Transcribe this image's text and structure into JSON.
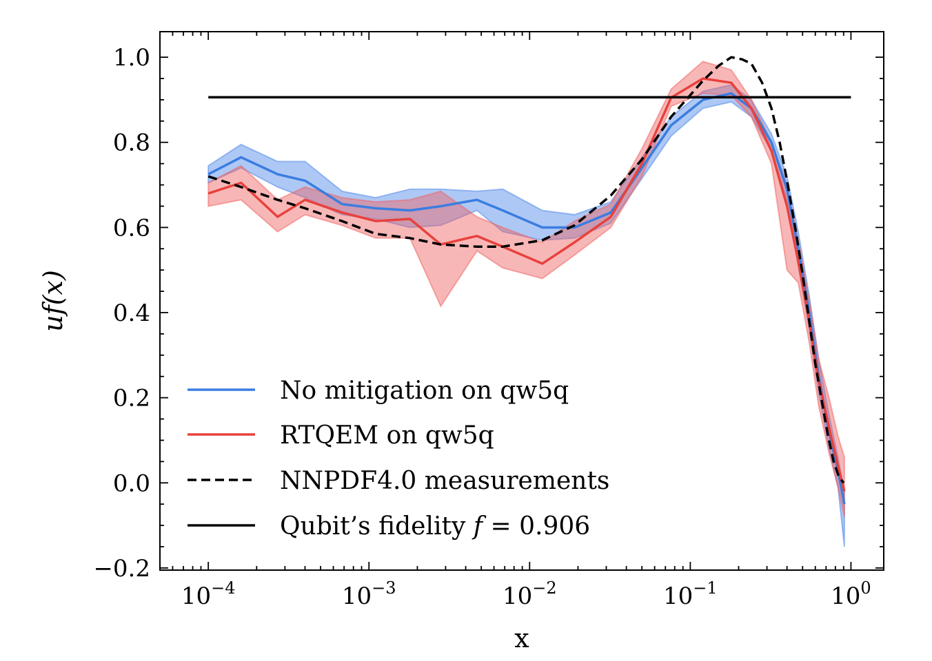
{
  "chart_data": {
    "type": "line",
    "xscale": "log",
    "xlim": [
      5e-05,
      1.6
    ],
    "ylim": [
      -0.205,
      1.06
    ],
    "xlabel": "x",
    "ylabel": "uf(x)",
    "x_ticks": [
      {
        "value": 0.0001,
        "base": "10",
        "exp": "−4"
      },
      {
        "value": 0.001,
        "base": "10",
        "exp": "−3"
      },
      {
        "value": 0.01,
        "base": "10",
        "exp": "−2"
      },
      {
        "value": 0.1,
        "base": "10",
        "exp": "−1"
      },
      {
        "value": 1,
        "base": "10",
        "exp": "0"
      }
    ],
    "y_ticks": [
      {
        "value": -0.2,
        "label": "−0.2"
      },
      {
        "value": 0.0,
        "label": "0.0"
      },
      {
        "value": 0.2,
        "label": "0.2"
      },
      {
        "value": 0.4,
        "label": "0.4"
      },
      {
        "value": 0.6,
        "label": "0.6"
      },
      {
        "value": 0.8,
        "label": "0.8"
      },
      {
        "value": 1.0,
        "label": "1.0"
      }
    ],
    "legend_position": "lower-left",
    "series": [
      {
        "name": "No mitigation on qw5q",
        "color": "#3a7de0",
        "band_color": "#4b86e8",
        "x": [
          0.0001,
          0.00016,
          0.00027,
          0.0004,
          0.00068,
          0.0011,
          0.0018,
          0.0028,
          0.0047,
          0.0068,
          0.012,
          0.019,
          0.032,
          0.05,
          0.076,
          0.12,
          0.18,
          0.24,
          0.32,
          0.4,
          0.47,
          0.55,
          0.63,
          0.73,
          0.83,
          0.91
        ],
        "y": [
          0.725,
          0.765,
          0.725,
          0.71,
          0.655,
          0.645,
          0.64,
          0.65,
          0.665,
          0.64,
          0.6,
          0.6,
          0.635,
          0.74,
          0.84,
          0.9,
          0.915,
          0.88,
          0.8,
          0.69,
          0.55,
          0.4,
          0.25,
          0.12,
          0.03,
          -0.05
        ],
        "y_upper": [
          0.745,
          0.795,
          0.755,
          0.755,
          0.685,
          0.67,
          0.69,
          0.69,
          0.685,
          0.69,
          0.64,
          0.63,
          0.66,
          0.765,
          0.86,
          0.92,
          0.935,
          0.9,
          0.82,
          0.72,
          0.59,
          0.44,
          0.29,
          0.16,
          0.06,
          -0.02
        ],
        "y_lower": [
          0.705,
          0.74,
          0.695,
          0.67,
          0.63,
          0.62,
          0.6,
          0.605,
          0.64,
          0.59,
          0.57,
          0.575,
          0.61,
          0.715,
          0.815,
          0.88,
          0.895,
          0.86,
          0.78,
          0.66,
          0.51,
          0.36,
          0.21,
          0.08,
          -0.01,
          -0.15
        ]
      },
      {
        "name": "RTQEM on qw5q",
        "color": "#e8413c",
        "band_color": "#f06060",
        "x": [
          0.0001,
          0.00016,
          0.00027,
          0.0004,
          0.00068,
          0.0011,
          0.0018,
          0.0028,
          0.0047,
          0.0068,
          0.012,
          0.019,
          0.032,
          0.05,
          0.076,
          0.12,
          0.18,
          0.24,
          0.32,
          0.4,
          0.47,
          0.55,
          0.63,
          0.73,
          0.83,
          0.91
        ],
        "y": [
          0.68,
          0.705,
          0.625,
          0.665,
          0.635,
          0.615,
          0.62,
          0.56,
          0.58,
          0.555,
          0.515,
          0.565,
          0.625,
          0.75,
          0.905,
          0.95,
          0.94,
          0.88,
          0.78,
          0.65,
          0.52,
          0.38,
          0.24,
          0.13,
          0.04,
          -0.02
        ],
        "y_upper": [
          0.705,
          0.745,
          0.665,
          0.695,
          0.67,
          0.66,
          0.665,
          0.685,
          0.625,
          0.6,
          0.565,
          0.615,
          0.655,
          0.785,
          0.925,
          0.99,
          0.97,
          0.9,
          0.8,
          0.7,
          0.57,
          0.43,
          0.29,
          0.2,
          0.11,
          0.06
        ],
        "y_lower": [
          0.65,
          0.665,
          0.59,
          0.63,
          0.605,
          0.575,
          0.575,
          0.415,
          0.545,
          0.505,
          0.48,
          0.535,
          0.6,
          0.72,
          0.885,
          0.915,
          0.91,
          0.86,
          0.75,
          0.5,
          0.47,
          0.33,
          0.18,
          0.07,
          -0.01,
          -0.08
        ]
      },
      {
        "name": "NNPDF4.0 measurements",
        "color": "#000000",
        "dashed": true,
        "x": [
          0.0001,
          0.00016,
          0.00027,
          0.0004,
          0.00068,
          0.0011,
          0.0018,
          0.0028,
          0.0047,
          0.0068,
          0.012,
          0.019,
          0.032,
          0.05,
          0.076,
          0.12,
          0.15,
          0.18,
          0.21,
          0.24,
          0.28,
          0.32,
          0.36,
          0.4,
          0.45,
          0.5,
          0.55,
          0.6,
          0.66,
          0.72,
          0.78,
          0.84,
          0.9
        ],
        "y": [
          0.72,
          0.695,
          0.665,
          0.645,
          0.615,
          0.585,
          0.575,
          0.56,
          0.555,
          0.555,
          0.57,
          0.605,
          0.675,
          0.76,
          0.86,
          0.945,
          0.98,
          1.0,
          0.995,
          0.985,
          0.94,
          0.88,
          0.8,
          0.71,
          0.6,
          0.49,
          0.38,
          0.28,
          0.19,
          0.11,
          0.05,
          0.015,
          0.0
        ]
      },
      {
        "name": "Qubit’s fidelity f = 0.906",
        "legend_parts": [
          "Qubit’s fidelity ",
          "f",
          " = 0.906"
        ],
        "color": "#000000",
        "x": [
          0.0001,
          1
        ],
        "y": [
          0.906,
          0.906
        ]
      }
    ]
  }
}
